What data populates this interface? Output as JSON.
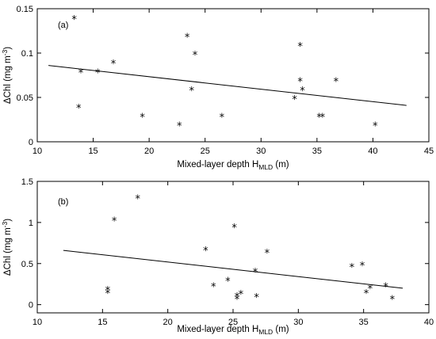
{
  "chart_data": [
    {
      "type": "scatter",
      "panel_label": "(a)",
      "xlabel_main": "Mixed-layer depth H",
      "xlabel_sub": "MLD",
      "xlabel_unit": " (m)",
      "ylabel_main": "ΔChl (mg m",
      "ylabel_sup": "-3",
      "ylabel_end": ")",
      "xlim": [
        10,
        45
      ],
      "ylim": [
        0,
        0.15
      ],
      "xticks": [
        10,
        15,
        20,
        25,
        30,
        35,
        40,
        45
      ],
      "yticks": [
        0,
        0.05,
        0.1,
        0.15
      ],
      "ytick_labels": [
        "0",
        "0.05",
        "0.1",
        "0.15"
      ],
      "marker": "*",
      "points": [
        {
          "x": 13.3,
          "y": 0.14
        },
        {
          "x": 13.7,
          "y": 0.04
        },
        {
          "x": 13.9,
          "y": 0.08
        },
        {
          "x": 15.4,
          "y": 0.08
        },
        {
          "x": 16.8,
          "y": 0.09
        },
        {
          "x": 19.4,
          "y": 0.03
        },
        {
          "x": 22.7,
          "y": 0.02
        },
        {
          "x": 23.4,
          "y": 0.12
        },
        {
          "x": 23.8,
          "y": 0.06
        },
        {
          "x": 24.1,
          "y": 0.1
        },
        {
          "x": 26.5,
          "y": 0.03
        },
        {
          "x": 33.0,
          "y": 0.05
        },
        {
          "x": 33.5,
          "y": 0.11
        },
        {
          "x": 33.5,
          "y": 0.07
        },
        {
          "x": 33.7,
          "y": 0.06
        },
        {
          "x": 35.2,
          "y": 0.03
        },
        {
          "x": 35.5,
          "y": 0.03
        },
        {
          "x": 36.7,
          "y": 0.07
        },
        {
          "x": 40.2,
          "y": 0.02
        }
      ],
      "trend_line": {
        "x": [
          11,
          43
        ],
        "y": [
          0.086,
          0.041
        ]
      }
    },
    {
      "type": "scatter",
      "panel_label": "(b)",
      "xlabel_main": "Mixed-layer depth H",
      "xlabel_sub": "MLD",
      "xlabel_unit": " (m)",
      "ylabel_main": "ΔChl (mg m",
      "ylabel_sup": "-3",
      "ylabel_end": ")",
      "xlim": [
        10,
        40
      ],
      "ylim": [
        -0.1,
        1.5
      ],
      "xticks": [
        10,
        15,
        20,
        25,
        30,
        35,
        40
      ],
      "yticks": [
        0,
        0.5,
        1,
        1.5
      ],
      "ytick_labels": [
        "0",
        "0.5",
        "1",
        "1.5"
      ],
      "marker": "*",
      "points": [
        {
          "x": 15.4,
          "y": 0.2
        },
        {
          "x": 15.4,
          "y": 0.16
        },
        {
          "x": 15.9,
          "y": 1.04
        },
        {
          "x": 17.7,
          "y": 1.31
        },
        {
          "x": 22.9,
          "y": 0.68
        },
        {
          "x": 23.5,
          "y": 0.24
        },
        {
          "x": 24.6,
          "y": 0.31
        },
        {
          "x": 25.1,
          "y": 0.96
        },
        {
          "x": 25.3,
          "y": 0.12
        },
        {
          "x": 25.3,
          "y": 0.09
        },
        {
          "x": 25.6,
          "y": 0.15
        },
        {
          "x": 26.7,
          "y": 0.42
        },
        {
          "x": 26.8,
          "y": 0.11
        },
        {
          "x": 27.6,
          "y": 0.65
        },
        {
          "x": 34.1,
          "y": 0.48
        },
        {
          "x": 34.9,
          "y": 0.5
        },
        {
          "x": 35.2,
          "y": 0.16
        },
        {
          "x": 35.5,
          "y": 0.22
        },
        {
          "x": 36.7,
          "y": 0.24
        },
        {
          "x": 37.2,
          "y": 0.09
        }
      ],
      "trend_line": {
        "x": [
          12,
          38
        ],
        "y": [
          0.66,
          0.2
        ]
      }
    }
  ]
}
